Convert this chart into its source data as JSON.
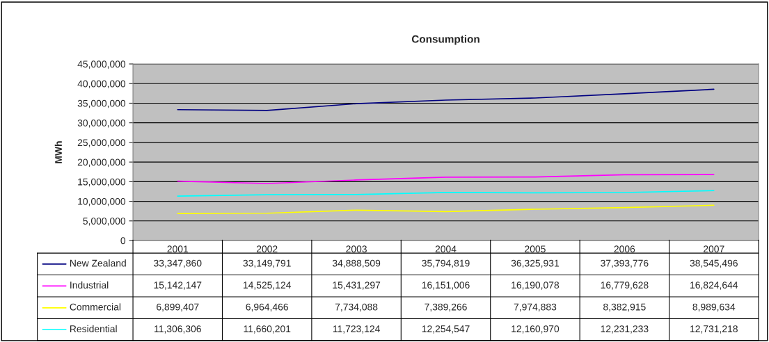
{
  "chart_data": {
    "type": "line",
    "title": "Consumption",
    "ylabel": "MWh",
    "categories": [
      "2001",
      "2002",
      "2003",
      "2004",
      "2005",
      "2006",
      "2007"
    ],
    "series": [
      {
        "name": "New Zealand",
        "color": "#000080",
        "values": [
          33347860,
          33149791,
          34888509,
          35794819,
          36325931,
          37393776,
          38545496
        ],
        "value_labels": [
          "33,347,860",
          "33,149,791",
          "34,888,509",
          "35,794,819",
          "36,325,931",
          "37,393,776",
          "38,545,496"
        ]
      },
      {
        "name": "Industrial",
        "color": "#ff00ff",
        "values": [
          15142147,
          14525124,
          15431297,
          16151006,
          16190078,
          16779628,
          16824644
        ],
        "value_labels": [
          "15,142,147",
          "14,525,124",
          "15,431,297",
          "16,151,006",
          "16,190,078",
          "16,779,628",
          "16,824,644"
        ]
      },
      {
        "name": "Commercial",
        "color": "#ffff00",
        "values": [
          6899407,
          6964466,
          7734088,
          7389266,
          7974883,
          8382915,
          8989634
        ],
        "value_labels": [
          "6,899,407",
          "6,964,466",
          "7,734,088",
          "7,389,266",
          "7,974,883",
          "8,382,915",
          "8,989,634"
        ]
      },
      {
        "name": "Residential",
        "color": "#00ffff",
        "values": [
          11306306,
          11660201,
          11723124,
          12254547,
          12160970,
          12231233,
          12731218
        ],
        "value_labels": [
          "11,306,306",
          "11,660,201",
          "11,723,124",
          "12,254,547",
          "12,160,970",
          "12,231,233",
          "12,731,218"
        ]
      }
    ],
    "ylim": [
      0,
      45000000
    ],
    "yticks": [
      {
        "value": 0,
        "label": "0"
      },
      {
        "value": 5000000,
        "label": "5,000,000"
      },
      {
        "value": 10000000,
        "label": "10,000,000"
      },
      {
        "value": 15000000,
        "label": "15,000,000"
      },
      {
        "value": 20000000,
        "label": "20,000,000"
      },
      {
        "value": 25000000,
        "label": "25,000,000"
      },
      {
        "value": 30000000,
        "label": "30,000,000"
      },
      {
        "value": 35000000,
        "label": "35,000,000"
      },
      {
        "value": 40000000,
        "label": "40,000,000"
      },
      {
        "value": 45000000,
        "label": "45,000,000"
      }
    ],
    "grid": "y",
    "legend": "bottom",
    "marker": "none",
    "line_style": "solid"
  }
}
